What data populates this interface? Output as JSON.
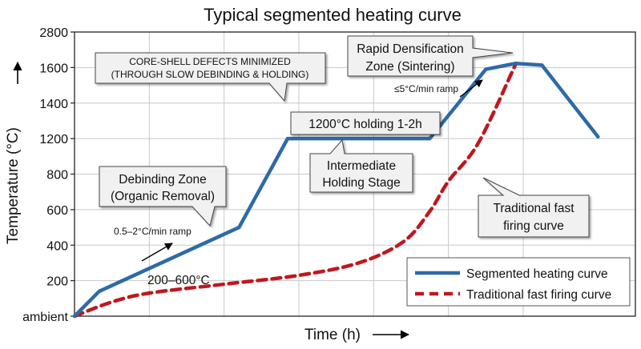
{
  "chart_data": {
    "type": "line",
    "title": "Typical segmented heating curve",
    "xlabel": "Time (h)",
    "ylabel": "Temperature (°C)",
    "ylim": [
      0,
      2800
    ],
    "y_ticks": [
      {
        "value": 0,
        "label": "ambient"
      },
      {
        "value": 200,
        "label": "200"
      },
      {
        "value": 400,
        "label": "400"
      },
      {
        "value": 600,
        "label": "600"
      },
      {
        "value": 800,
        "label": "800"
      },
      {
        "value": 1200,
        "label": "1200"
      },
      {
        "value": 1400,
        "label": "1400"
      },
      {
        "value": 1600,
        "label": "1600"
      },
      {
        "value": 2800,
        "label": "2800"
      }
    ],
    "grid": true,
    "legend_position": "bottom-right",
    "series": [
      {
        "name": "Segmented heating curve",
        "color": "#2e6aa6",
        "style": "solid",
        "x": [
          0,
          0.33,
          2.2,
          2.85,
          4.75,
          5.5,
          5.9,
          6.25,
          7.0
        ],
        "y": [
          0,
          140,
          500,
          1200,
          1200,
          1590,
          1740,
          1680,
          1210
        ]
      },
      {
        "name": "Traditional fast firing curve",
        "color": "#c0171f",
        "style": "dashed",
        "x": [
          0,
          0.5,
          1.0,
          2.0,
          3.0,
          3.8,
          4.4,
          4.75,
          5.0,
          5.4,
          5.9
        ],
        "y": [
          0,
          80,
          130,
          180,
          230,
          300,
          420,
          590,
          760,
          1150,
          1720
        ]
      }
    ],
    "annotations": {
      "core_shell_line1": "CORE-SHELL DEFECTS MINIMIZED",
      "core_shell_line2": "(THROUGH SLOW DEBINDING & HOLDING)",
      "rapid_line1": "Rapid Densification",
      "rapid_line2": "Zone (Sintering)",
      "holding": "1200°C holding 1-2h",
      "intermediate_line1": "Intermediate",
      "intermediate_line2": "Holding Stage",
      "debinding_line1": "Debinding Zone",
      "debinding_line2": "(Organic Removal)",
      "traditional_line1": "Traditional fast",
      "traditional_line2": "firing curve",
      "ramp_slow": "0.5–2°C/min ramp",
      "ramp_fast": "≤5°C/min ramp",
      "range": "200–600°C"
    }
  }
}
